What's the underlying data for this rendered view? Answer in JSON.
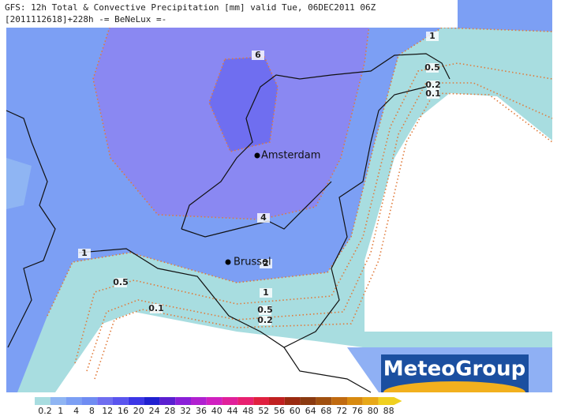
{
  "header": {
    "line1": "GFS: 12h Total & Convective Precipitation [mm] valid Tue, 06DEC2011 06Z",
    "line2": "[2011112618]+228h -= BeNeLux =-"
  },
  "cities": [
    "Amsterdam",
    "Brussel"
  ],
  "contour_labels": [
    6,
    4,
    2,
    1,
    1,
    1,
    0.5,
    0.5,
    0.5,
    0.2,
    0.2,
    0.1,
    0.1
  ],
  "logo": "MeteoGroup",
  "legend": {
    "values": [
      0.2,
      1,
      4,
      8,
      12,
      16,
      20,
      24,
      28,
      32,
      36,
      40,
      44,
      48,
      52,
      56,
      60,
      64,
      68,
      72,
      76,
      80,
      88
    ],
    "colors": [
      "#a8dde0",
      "#8fb5f3",
      "#7c9ff4",
      "#6f8cf2",
      "#6f6ef0",
      "#5a55ee",
      "#3c36e6",
      "#2020d0",
      "#5a1fd0",
      "#8a1fd8",
      "#b020d0",
      "#d020c0",
      "#e0209a",
      "#e82070",
      "#e02040",
      "#c02020",
      "#9a2a10",
      "#8a3a10",
      "#a05010",
      "#c06a10",
      "#d88a10",
      "#e8a818",
      "#f0d020"
    ]
  }
}
